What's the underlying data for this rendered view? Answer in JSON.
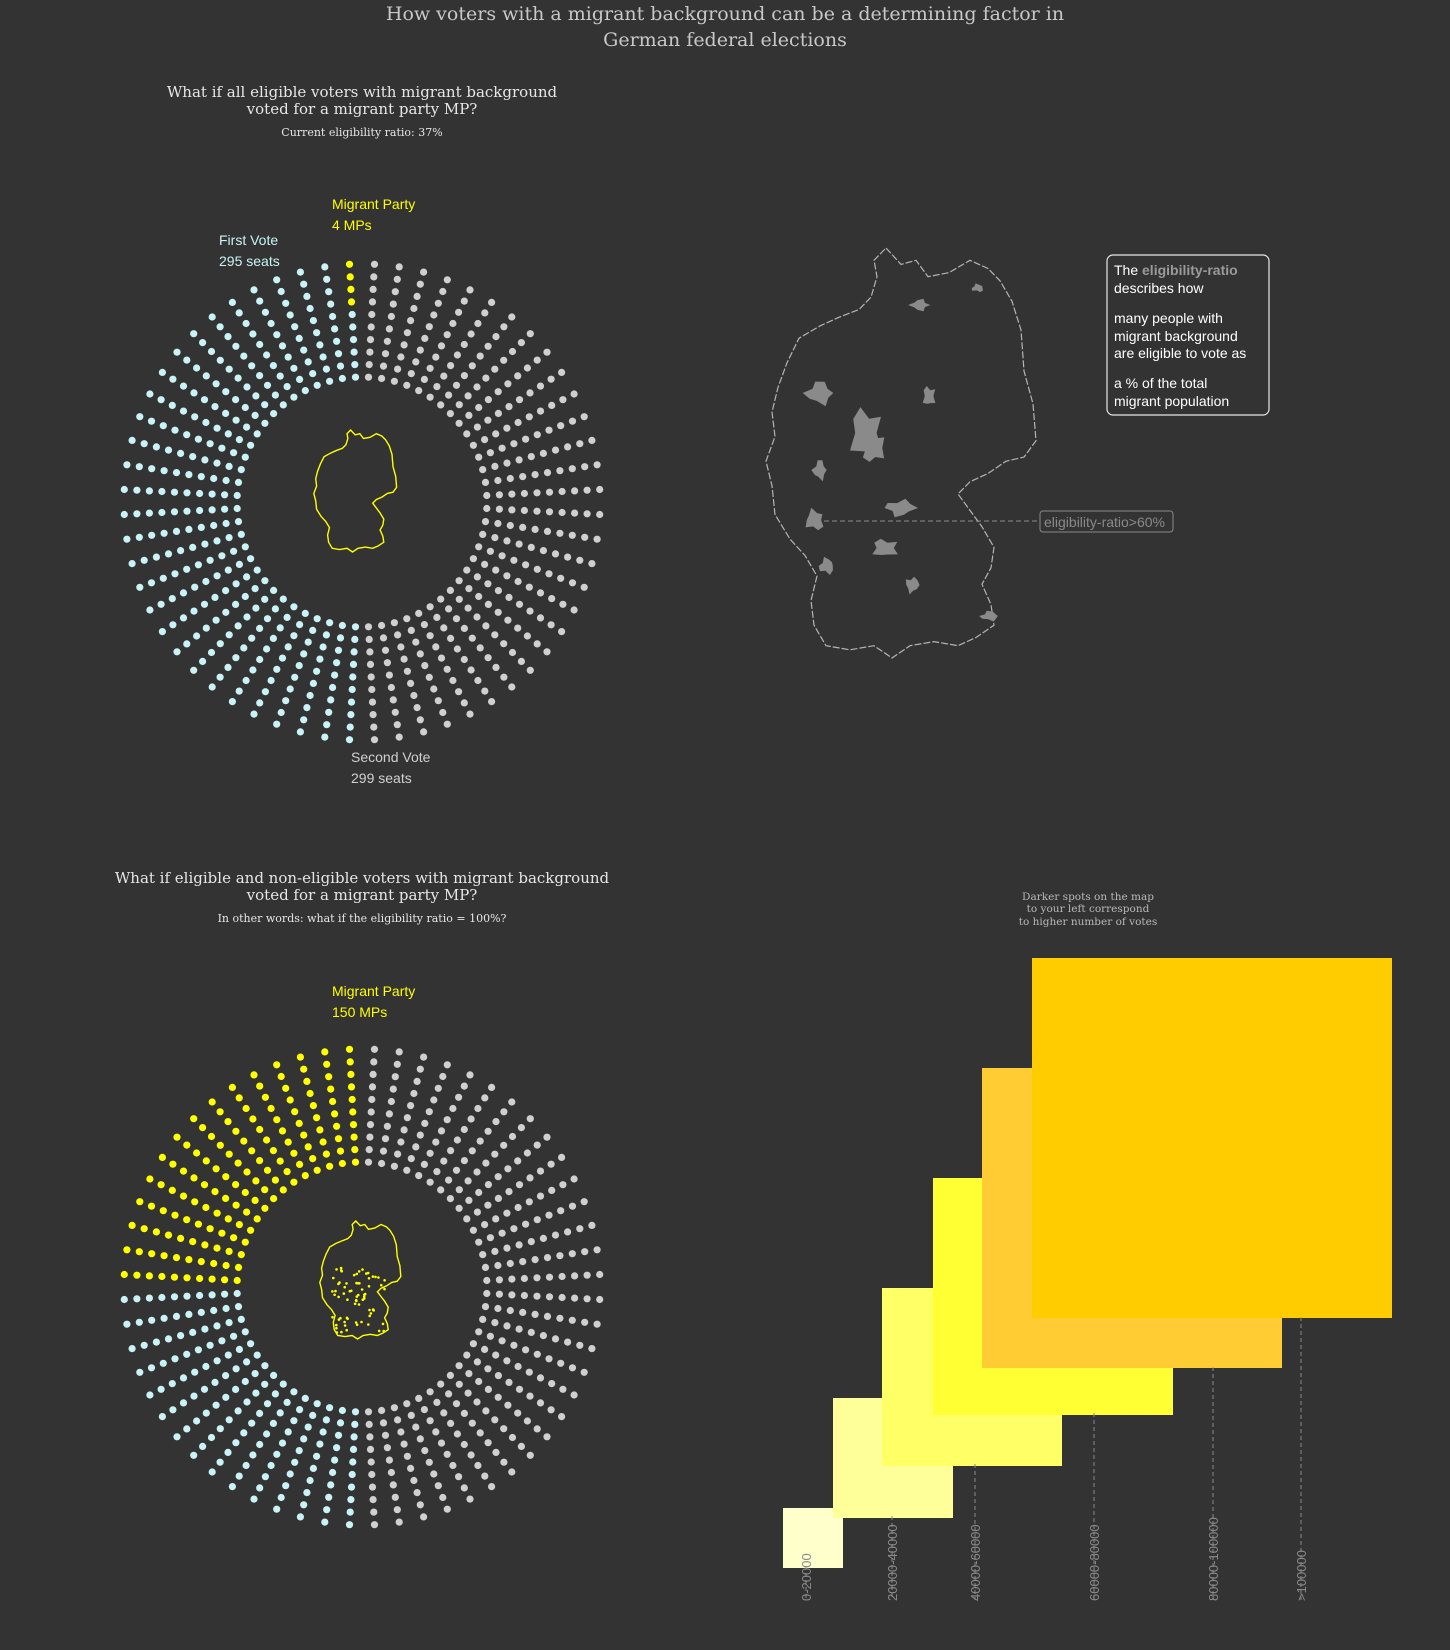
{
  "title": {
    "line1": "How voters with a migrant background can be a determining factor in",
    "line2": "German federal elections"
  },
  "colors": {
    "background": "#333333",
    "first_vote": "#c9f3f6",
    "second_vote": "#d0d0d0",
    "migrant": "#ffff00"
  },
  "panels": [
    {
      "heading1": "What if all eligible voters with migrant background",
      "heading2": "voted for a migrant party MP?",
      "subtitle": "Current eligibility ratio: 37%",
      "migrant_label": "Migrant Party",
      "migrant_count": "4 MPs",
      "first_label": "First Vote",
      "first_count": "295 seats",
      "second_label": "Second Vote",
      "second_count": "299 seats"
    },
    {
      "heading1": "What if eligible and non-eligible voters with migrant background",
      "heading2": "voted for a migrant party MP?",
      "subtitle": "In other words: what if the eligibility ratio = 100%?",
      "migrant_label": "Migrant Party",
      "migrant_count": "150 MPs"
    }
  ],
  "map": {
    "tooltip_line1_pre": "The ",
    "tooltip_term": "eligibility-ratio",
    "tooltip_line2": "describes how",
    "tooltip_line3": "many people with",
    "tooltip_line4": "migrant background",
    "tooltip_line5": "are eligible to vote as",
    "tooltip_line6": "a % of the total",
    "tooltip_line7": "migrant population",
    "annotation": "eligibility-ratio>60%"
  },
  "legend": {
    "note1": "Darker spots on the map",
    "note2": "to your left correspond",
    "note3": "to higher number of votes"
  },
  "chart_data": [
    {
      "type": "parliament",
      "title": "What if all eligible voters with migrant background voted for a migrant party MP?",
      "total_seats": 598,
      "series": [
        {
          "name": "First Vote",
          "value": 295
        },
        {
          "name": "Migrant Party",
          "value": 4
        },
        {
          "name": "Second Vote",
          "value": 299
        }
      ]
    },
    {
      "type": "parliament",
      "title": "What if eligible and non-eligible voters with migrant background voted for a migrant party MP?",
      "total_seats": 598,
      "series": [
        {
          "name": "Migrant Party",
          "value": 150
        },
        {
          "name": "Second Vote",
          "value": 299
        }
      ]
    },
    {
      "type": "bar",
      "categories": [
        "0-20000",
        "20000-40000",
        "40000-60000",
        "60000-80000",
        "80000-100000",
        ">100000"
      ],
      "colors": [
        "#ffffcc",
        "#ffff99",
        "#ffff66",
        "#ffff33",
        "#ffcc33",
        "#ffcc00"
      ]
    }
  ]
}
